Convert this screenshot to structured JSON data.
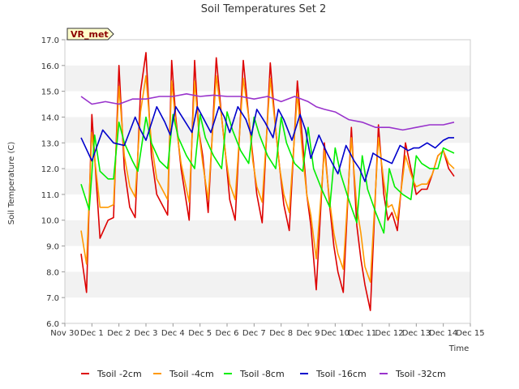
{
  "chart_data": {
    "type": "line",
    "title": "Soil Temperatures Set 2",
    "xlabel": "Time",
    "ylabel": "Soil Temperature (C)",
    "badge": "VR_met",
    "ylim": [
      6.0,
      17.0
    ],
    "xlim": [
      "Nov 30",
      "Dec 15"
    ],
    "x_ticks": [
      "Nov 30",
      "Dec 1",
      "Dec 2",
      "Dec 3",
      "Dec 4",
      "Dec 5",
      "Dec 6",
      "Dec 7",
      "Dec 8",
      "Dec 9",
      "Dec 10",
      "Dec 11",
      "Dec 12",
      "Dec 13",
      "Dec 14",
      "Dec 15"
    ],
    "y_ticks": [
      "6.0",
      "7.0",
      "8.0",
      "9.0",
      "10.0",
      "11.0",
      "12.0",
      "13.0",
      "14.0",
      "15.0",
      "16.0",
      "17.0"
    ],
    "grid": "alternating horizontal bands",
    "legend_position": "bottom",
    "series": [
      {
        "name": "Tsoil -2cm",
        "color": "#dd0000",
        "x": [
          0.6,
          0.8,
          1.0,
          1.3,
          1.6,
          1.8,
          2.0,
          2.2,
          2.4,
          2.6,
          2.8,
          3.0,
          3.2,
          3.4,
          3.8,
          3.95,
          4.1,
          4.3,
          4.6,
          4.8,
          4.95,
          5.1,
          5.3,
          5.6,
          5.8,
          5.95,
          6.1,
          6.3,
          6.6,
          6.8,
          6.95,
          7.1,
          7.3,
          7.6,
          7.8,
          7.95,
          8.1,
          8.3,
          8.6,
          8.8,
          8.95,
          9.1,
          9.3,
          9.6,
          9.8,
          9.95,
          10.1,
          10.3,
          10.6,
          10.8,
          10.95,
          11.1,
          11.3,
          11.6,
          11.8,
          11.95,
          12.1,
          12.3,
          12.6,
          12.8,
          12.9,
          13.0,
          13.2,
          13.4,
          13.6,
          13.8,
          14.0,
          14.2,
          14.4
        ],
        "y": [
          8.7,
          7.2,
          14.1,
          9.3,
          10.0,
          10.1,
          16.0,
          12.0,
          10.5,
          10.1,
          15.0,
          16.5,
          12.5,
          11.0,
          10.2,
          16.2,
          14.0,
          12.0,
          10.0,
          16.2,
          13.5,
          12.5,
          10.3,
          16.3,
          14.0,
          12.5,
          10.8,
          10.0,
          16.2,
          14.0,
          12.5,
          11.0,
          9.9,
          16.1,
          13.5,
          12.0,
          10.6,
          9.6,
          15.4,
          13.0,
          11.0,
          9.8,
          7.3,
          13.0,
          10.5,
          9.0,
          8.0,
          7.2,
          13.6,
          9.8,
          8.5,
          7.5,
          6.5,
          13.7,
          11.0,
          10.0,
          10.3,
          9.6,
          13.0,
          12.0,
          11.5,
          11.0,
          11.2,
          11.2,
          11.8,
          12.5,
          12.7,
          12.0,
          11.7
        ]
      },
      {
        "name": "Tsoil -4cm",
        "color": "#ff9900",
        "x": [
          0.6,
          0.8,
          1.0,
          1.3,
          1.6,
          1.8,
          2.0,
          2.2,
          2.4,
          2.6,
          2.8,
          3.0,
          3.2,
          3.4,
          3.8,
          3.95,
          4.1,
          4.3,
          4.6,
          4.8,
          4.95,
          5.1,
          5.3,
          5.6,
          5.8,
          5.95,
          6.1,
          6.3,
          6.6,
          6.8,
          6.95,
          7.1,
          7.3,
          7.6,
          7.8,
          7.95,
          8.1,
          8.3,
          8.6,
          8.8,
          8.95,
          9.1,
          9.3,
          9.6,
          9.8,
          9.95,
          10.1,
          10.3,
          10.6,
          10.8,
          10.95,
          11.1,
          11.3,
          11.6,
          11.8,
          11.95,
          12.1,
          12.3,
          12.6,
          12.8,
          12.9,
          13.0,
          13.2,
          13.4,
          13.6,
          13.8,
          14.0,
          14.2,
          14.4
        ],
        "y": [
          9.6,
          8.3,
          13.4,
          10.5,
          10.5,
          10.6,
          15.2,
          12.5,
          11.3,
          10.9,
          14.2,
          15.6,
          13.0,
          11.6,
          10.8,
          15.4,
          13.8,
          12.2,
          10.7,
          15.4,
          13.5,
          12.2,
          10.8,
          15.6,
          14.0,
          12.5,
          11.4,
          10.8,
          15.5,
          14.0,
          12.3,
          11.3,
          10.7,
          15.5,
          13.5,
          12.0,
          11.0,
          10.3,
          14.9,
          12.5,
          11.0,
          10.2,
          8.5,
          12.7,
          10.7,
          9.5,
          8.7,
          8.1,
          13.2,
          10.5,
          9.5,
          8.2,
          7.6,
          13.2,
          11.5,
          10.5,
          10.6,
          10.0,
          12.5,
          11.8,
          11.5,
          11.3,
          11.4,
          11.4,
          11.8,
          12.5,
          12.7,
          12.2,
          12.0
        ]
      },
      {
        "name": "Tsoil -8cm",
        "color": "#00ee00",
        "x": [
          0.6,
          0.9,
          1.1,
          1.3,
          1.6,
          1.8,
          2.0,
          2.2,
          2.5,
          2.7,
          3.0,
          3.2,
          3.5,
          3.8,
          4.0,
          4.2,
          4.5,
          4.8,
          5.0,
          5.2,
          5.5,
          5.8,
          6.0,
          6.2,
          6.5,
          6.8,
          7.0,
          7.2,
          7.5,
          7.8,
          8.0,
          8.2,
          8.5,
          8.8,
          9.0,
          9.2,
          9.5,
          9.8,
          10.0,
          10.2,
          10.5,
          10.8,
          11.0,
          11.2,
          11.5,
          11.8,
          12.0,
          12.2,
          12.5,
          12.8,
          13.0,
          13.2,
          13.5,
          13.8,
          14.0,
          14.2,
          14.4
        ],
        "y": [
          11.4,
          10.4,
          13.3,
          11.9,
          11.6,
          11.6,
          13.8,
          13.0,
          12.3,
          11.9,
          14.0,
          13.0,
          12.3,
          12.0,
          14.1,
          13.2,
          12.5,
          12.0,
          14.1,
          13.2,
          12.5,
          12.0,
          14.2,
          13.5,
          12.7,
          12.2,
          14.0,
          13.3,
          12.5,
          12.0,
          14.0,
          13.0,
          12.2,
          11.9,
          13.6,
          12.0,
          11.2,
          10.5,
          12.8,
          11.8,
          10.8,
          9.9,
          12.5,
          11.2,
          10.3,
          9.5,
          12.0,
          11.3,
          11.0,
          10.8,
          12.5,
          12.2,
          12.0,
          12.0,
          12.8,
          12.7,
          12.6
        ]
      },
      {
        "name": "Tsoil -16cm",
        "color": "#0000cc",
        "x": [
          0.6,
          1.0,
          1.4,
          1.8,
          2.2,
          2.6,
          2.8,
          3.0,
          3.4,
          3.7,
          3.9,
          4.1,
          4.4,
          4.7,
          4.9,
          5.1,
          5.4,
          5.7,
          5.9,
          6.1,
          6.4,
          6.7,
          6.9,
          7.1,
          7.4,
          7.7,
          7.9,
          8.1,
          8.4,
          8.7,
          8.9,
          9.1,
          9.4,
          9.7,
          9.9,
          10.1,
          10.4,
          10.7,
          10.9,
          11.1,
          11.4,
          11.7,
          11.9,
          12.1,
          12.4,
          12.7,
          12.9,
          13.1,
          13.4,
          13.7,
          14.0,
          14.2,
          14.4
        ],
        "y": [
          13.2,
          12.3,
          13.5,
          13.0,
          12.9,
          14.0,
          13.5,
          13.1,
          14.4,
          13.8,
          13.3,
          14.4,
          13.9,
          13.4,
          14.4,
          14.0,
          13.4,
          14.4,
          14.0,
          13.4,
          14.4,
          13.9,
          13.3,
          14.3,
          13.8,
          13.2,
          14.3,
          13.9,
          13.1,
          14.1,
          13.5,
          12.4,
          13.3,
          12.6,
          12.2,
          11.8,
          12.9,
          12.3,
          12.0,
          11.5,
          12.6,
          12.4,
          12.3,
          12.2,
          12.9,
          12.7,
          12.8,
          12.8,
          13.0,
          12.8,
          13.1,
          13.2,
          13.2
        ]
      },
      {
        "name": "Tsoil -32cm",
        "color": "#9933cc",
        "x": [
          0.6,
          1.0,
          1.5,
          2.0,
          2.5,
          3.0,
          3.5,
          4.0,
          4.5,
          5.0,
          5.5,
          6.0,
          6.5,
          7.0,
          7.5,
          8.0,
          8.5,
          9.0,
          9.3,
          9.6,
          10.0,
          10.5,
          11.0,
          11.5,
          12.0,
          12.5,
          13.0,
          13.5,
          14.0,
          14.4
        ],
        "y": [
          14.8,
          14.5,
          14.6,
          14.5,
          14.7,
          14.7,
          14.8,
          14.8,
          14.9,
          14.8,
          14.85,
          14.8,
          14.8,
          14.7,
          14.8,
          14.6,
          14.8,
          14.6,
          14.4,
          14.3,
          14.2,
          13.9,
          13.8,
          13.6,
          13.6,
          13.5,
          13.6,
          13.7,
          13.7,
          13.8
        ]
      }
    ]
  }
}
